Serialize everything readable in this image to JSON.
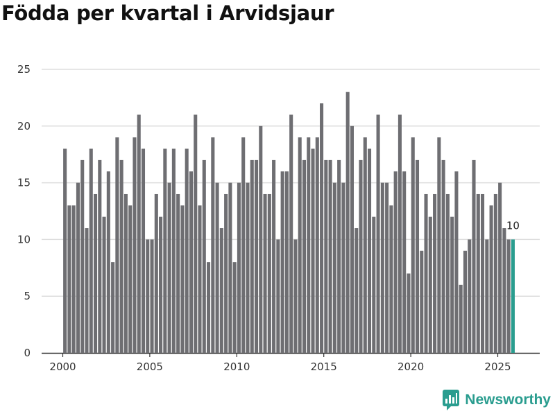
{
  "title": "Födda per kvartal i Arvidsjaur",
  "brand": {
    "name": "Newsworthy",
    "icon": "chart-logo-icon",
    "color": "#2a9d8f"
  },
  "colors": {
    "bar": "#6e6e72",
    "highlight": "#2a9d8f",
    "grid": "#dddddd",
    "axis": "#333333"
  },
  "chart_data": {
    "type": "bar",
    "title": "Födda per kvartal i Arvidsjaur",
    "xlabel": "",
    "ylabel": "",
    "ylim": [
      0,
      25
    ],
    "yticks": [
      0,
      5,
      10,
      15,
      20,
      25
    ],
    "xticks": [
      2000,
      2005,
      2010,
      2015,
      2020,
      2025
    ],
    "grid": true,
    "start_year": 2000,
    "start_quarter": 1,
    "values": [
      18,
      13,
      13,
      15,
      17,
      11,
      18,
      14,
      17,
      12,
      16,
      8,
      19,
      17,
      14,
      13,
      19,
      21,
      18,
      10,
      10,
      14,
      12,
      18,
      15,
      18,
      14,
      13,
      18,
      16,
      21,
      13,
      17,
      8,
      19,
      15,
      11,
      14,
      15,
      8,
      15,
      19,
      15,
      17,
      17,
      20,
      14,
      14,
      17,
      10,
      16,
      16,
      21,
      10,
      19,
      17,
      19,
      18,
      19,
      22,
      17,
      17,
      15,
      17,
      15,
      23,
      20,
      11,
      17,
      19,
      18,
      12,
      21,
      15,
      15,
      13,
      16,
      21,
      16,
      7,
      19,
      17,
      9,
      14,
      12,
      14,
      19,
      17,
      14,
      12,
      16,
      6,
      9,
      10,
      17,
      14,
      14,
      10,
      13,
      14,
      15,
      11,
      10,
      10
    ],
    "highlight_last": true,
    "last_value_label": "10"
  }
}
